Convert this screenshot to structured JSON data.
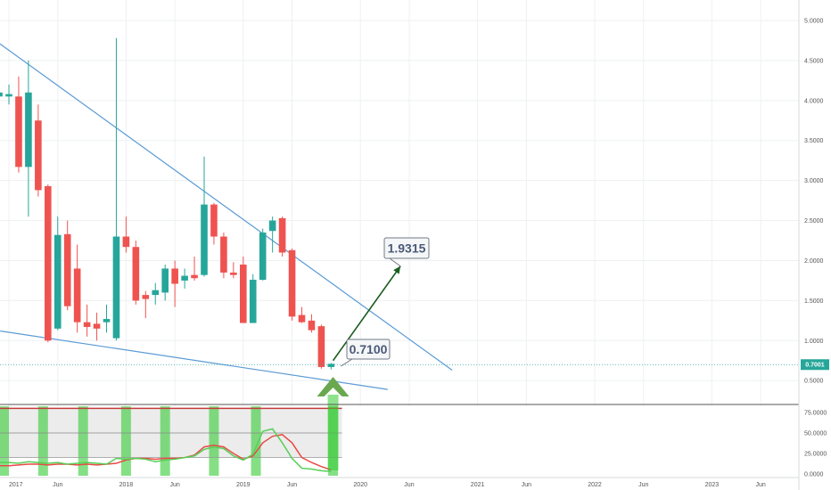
{
  "chart_data": {
    "type": "candlestick",
    "instrument_timeframe": "monthly",
    "price_axis": {
      "ticks": [
        "5.0000",
        "4.5000",
        "4.0000",
        "3.5000",
        "3.0000",
        "2.5000",
        "2.0000",
        "1.5000",
        "1.0000",
        "0.5000"
      ],
      "range": [
        0.38,
        5.1
      ]
    },
    "oscillator_axis": {
      "ticks": [
        "75.0000",
        "50.0000",
        "25.0000",
        "0.0000"
      ],
      "range": [
        -2,
        100
      ]
    },
    "time_axis": {
      "labels": [
        {
          "text": "2017",
          "m": 0
        },
        {
          "text": "Jun",
          "m": 5
        },
        {
          "text": "2018",
          "m": 12
        },
        {
          "text": "Jun",
          "m": 17
        },
        {
          "text": "2019",
          "m": 24
        },
        {
          "text": "Jun",
          "m": 29
        },
        {
          "text": "2020",
          "m": 36
        },
        {
          "text": "Jun",
          "m": 41
        },
        {
          "text": "2021",
          "m": 48
        },
        {
          "text": "Jun",
          "m": 53
        },
        {
          "text": "2022",
          "m": 60
        },
        {
          "text": "Jun",
          "m": 65
        },
        {
          "text": "2023",
          "m": 72
        },
        {
          "text": "Jun",
          "m": 77
        }
      ]
    },
    "candles": [
      {
        "m": -1,
        "o": 4.05,
        "h": 4.5,
        "l": 4.0,
        "c": 4.1
      },
      {
        "m": 0,
        "o": 4.05,
        "h": 4.2,
        "l": 3.95,
        "c": 4.08
      },
      {
        "m": 1,
        "o": 4.05,
        "h": 4.3,
        "l": 3.1,
        "c": 3.17
      },
      {
        "m": 2,
        "o": 3.17,
        "h": 4.5,
        "l": 2.55,
        "c": 4.1
      },
      {
        "m": 3,
        "o": 3.75,
        "h": 3.95,
        "l": 2.8,
        "c": 2.88
      },
      {
        "m": 4,
        "o": 2.93,
        "h": 2.95,
        "l": 0.98,
        "c": 1.0
      },
      {
        "m": 5,
        "o": 1.15,
        "h": 2.55,
        "l": 1.13,
        "c": 2.32
      },
      {
        "m": 6,
        "o": 2.33,
        "h": 2.5,
        "l": 1.38,
        "c": 1.43
      },
      {
        "m": 7,
        "o": 1.9,
        "h": 2.2,
        "l": 1.1,
        "c": 1.23
      },
      {
        "m": 8,
        "o": 1.23,
        "h": 1.45,
        "l": 1.05,
        "c": 1.17
      },
      {
        "m": 9,
        "o": 1.21,
        "h": 1.35,
        "l": 1.0,
        "c": 1.15
      },
      {
        "m": 10,
        "o": 1.23,
        "h": 1.45,
        "l": 1.1,
        "c": 1.27
      },
      {
        "m": 11,
        "o": 1.03,
        "h": 4.78,
        "l": 1.0,
        "c": 2.3
      },
      {
        "m": 12,
        "o": 2.3,
        "h": 2.55,
        "l": 2.1,
        "c": 2.17
      },
      {
        "m": 13,
        "o": 2.17,
        "h": 2.25,
        "l": 1.45,
        "c": 1.5
      },
      {
        "m": 14,
        "o": 1.57,
        "h": 1.62,
        "l": 1.28,
        "c": 1.52
      },
      {
        "m": 15,
        "o": 1.57,
        "h": 1.72,
        "l": 1.45,
        "c": 1.63
      },
      {
        "m": 16,
        "o": 1.6,
        "h": 1.95,
        "l": 1.5,
        "c": 1.9
      },
      {
        "m": 17,
        "o": 1.9,
        "h": 2.0,
        "l": 1.42,
        "c": 1.71
      },
      {
        "m": 18,
        "o": 1.75,
        "h": 1.9,
        "l": 1.65,
        "c": 1.81
      },
      {
        "m": 19,
        "o": 1.82,
        "h": 2.05,
        "l": 1.75,
        "c": 1.78
      },
      {
        "m": 20,
        "o": 1.82,
        "h": 3.3,
        "l": 1.8,
        "c": 2.7
      },
      {
        "m": 21,
        "o": 2.7,
        "h": 2.72,
        "l": 2.2,
        "c": 2.3
      },
      {
        "m": 22,
        "o": 2.3,
        "h": 2.35,
        "l": 1.78,
        "c": 1.85
      },
      {
        "m": 23,
        "o": 1.85,
        "h": 1.98,
        "l": 1.78,
        "c": 1.82
      },
      {
        "m": 24,
        "o": 1.95,
        "h": 2.05,
        "l": 1.22,
        "c": 1.22
      },
      {
        "m": 25,
        "o": 1.22,
        "h": 1.83,
        "l": 1.22,
        "c": 1.76
      },
      {
        "m": 26,
        "o": 1.76,
        "h": 2.4,
        "l": 1.75,
        "c": 2.35
      },
      {
        "m": 27,
        "o": 2.37,
        "h": 2.55,
        "l": 2.1,
        "c": 2.5
      },
      {
        "m": 28,
        "o": 2.53,
        "h": 2.55,
        "l": 2.05,
        "c": 2.1
      },
      {
        "m": 29,
        "o": 2.13,
        "h": 2.15,
        "l": 1.25,
        "c": 1.3
      },
      {
        "m": 30,
        "o": 1.32,
        "h": 1.42,
        "l": 1.22,
        "c": 1.23
      },
      {
        "m": 31,
        "o": 1.25,
        "h": 1.33,
        "l": 1.1,
        "c": 1.13
      },
      {
        "m": 32,
        "o": 1.18,
        "h": 1.2,
        "l": 0.65,
        "c": 0.67
      },
      {
        "m": 33,
        "o": 0.67,
        "h": 0.72,
        "l": 0.64,
        "c": 0.71
      }
    ],
    "trendlines": [
      {
        "name": "upper",
        "from": {
          "m": -1.4,
          "p": 4.75
        },
        "to": {
          "m": 45.4,
          "p": 0.63
        }
      },
      {
        "name": "lower",
        "from": {
          "m": -0.9,
          "p": 1.12
        },
        "to": {
          "m": 38.8,
          "p": 0.39
        }
      }
    ],
    "projection_arrow": {
      "from": {
        "m": 33.2,
        "p": 0.75
      },
      "to": {
        "m": 40.1,
        "p": 1.93
      }
    },
    "current_price": {
      "value": 0.7001,
      "label": "0.7001"
    },
    "callouts": [
      {
        "text": "1.9315",
        "anchor": {
          "m": 40.1,
          "p": 1.93
        }
      },
      {
        "text": "0.7100",
        "anchor": {
          "m": 34.0,
          "p": 0.68
        }
      }
    ],
    "oscillator": {
      "overbought": 80,
      "midline": 50,
      "oversold": 20,
      "highlight_months": [
        -0.5,
        3.5,
        7.6,
        12,
        16,
        21,
        25.3,
        33.2
      ],
      "fast_line": [
        14,
        14,
        13,
        15,
        14,
        13,
        14,
        12,
        13,
        14,
        13,
        12,
        19,
        18,
        19,
        18,
        15,
        17,
        18,
        20,
        22,
        30,
        33,
        31,
        22,
        17,
        24,
        52,
        55,
        38,
        19,
        7,
        6,
        4,
        3
      ],
      "slow_line": [
        10,
        10,
        11,
        12,
        12,
        11,
        12,
        12,
        11,
        12,
        11,
        12,
        13,
        17,
        19,
        19,
        18,
        19,
        19,
        20,
        23,
        33,
        35,
        33,
        25,
        18,
        22,
        38,
        46,
        48,
        38,
        20,
        14,
        9,
        5
      ]
    },
    "colors": {
      "up": "#26a69a",
      "down": "#ef5350",
      "trendline": "#5b9bd5",
      "projection": "#1b5e20",
      "big_arrow": "#6aa84f",
      "highlight": "#33cc33",
      "fast_line": "#56cf56",
      "slow_line": "#e84a45",
      "overbought_line": "#c53b3b",
      "price_tag": "#26a69a",
      "callout_border": "#707a85"
    }
  }
}
